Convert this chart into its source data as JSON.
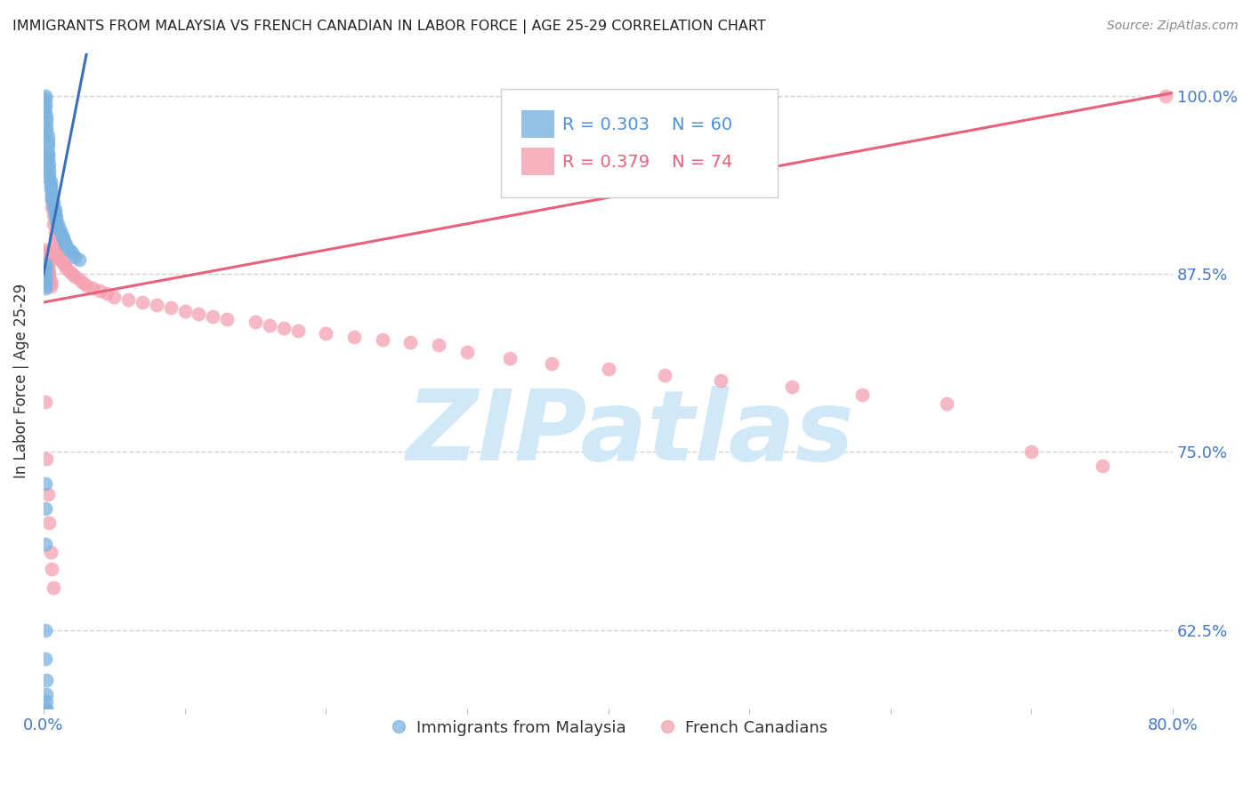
{
  "title": "IMMIGRANTS FROM MALAYSIA VS FRENCH CANADIAN IN LABOR FORCE | AGE 25-29 CORRELATION CHART",
  "source": "Source: ZipAtlas.com",
  "ylabel": "In Labor Force | Age 25-29",
  "xlim": [
    0.0,
    0.8
  ],
  "ylim": [
    0.57,
    1.03
  ],
  "xtick_pos": [
    0.0,
    0.1,
    0.2,
    0.3,
    0.4,
    0.5,
    0.6,
    0.7,
    0.8
  ],
  "xticklabels": [
    "0.0%",
    "",
    "",
    "",
    "",
    "",
    "",
    "",
    "80.0%"
  ],
  "ytick_positions": [
    0.625,
    0.75,
    0.875,
    1.0
  ],
  "ytick_labels": [
    "62.5%",
    "75.0%",
    "87.5%",
    "100.0%"
  ],
  "grid_color": "#cccccc",
  "background_color": "#ffffff",
  "series1_label": "Immigrants from Malaysia",
  "series2_label": "French Canadians",
  "series1_color": "#7ab3e0",
  "series2_color": "#f4a0b0",
  "series1_line_color": "#3a6fbe",
  "series2_line_color": "#e8607a",
  "legend_text1_color": "#4a90d9",
  "legend_text2_color": "#e8607a",
  "watermark": "ZIPatlas",
  "watermark_color": "#d0e8f8",
  "title_color": "#222222",
  "axis_label_color": "#333333",
  "tick_color": "#4477cc",
  "source_color": "#888888",
  "blue_x": [
    0.001,
    0.001,
    0.001,
    0.001,
    0.001,
    0.002,
    0.002,
    0.002,
    0.002,
    0.003,
    0.003,
    0.003,
    0.003,
    0.003,
    0.003,
    0.004,
    0.004,
    0.004,
    0.004,
    0.005,
    0.005,
    0.005,
    0.006,
    0.006,
    0.006,
    0.007,
    0.007,
    0.008,
    0.008,
    0.009,
    0.009,
    0.01,
    0.011,
    0.012,
    0.013,
    0.014,
    0.015,
    0.016,
    0.018,
    0.02,
    0.022,
    0.025,
    0.001,
    0.001,
    0.001,
    0.001,
    0.001,
    0.001,
    0.001,
    0.001,
    0.001,
    0.001,
    0.001,
    0.001,
    0.001,
    0.002,
    0.002,
    0.002,
    0.002,
    0.002
  ],
  "blue_y": [
    1.0,
    0.998,
    0.995,
    0.992,
    0.988,
    0.985,
    0.982,
    0.978,
    0.975,
    0.972,
    0.968,
    0.965,
    0.96,
    0.958,
    0.955,
    0.952,
    0.948,
    0.945,
    0.942,
    0.94,
    0.937,
    0.935,
    0.932,
    0.93,
    0.927,
    0.925,
    0.922,
    0.92,
    0.917,
    0.915,
    0.912,
    0.91,
    0.907,
    0.905,
    0.902,
    0.9,
    0.897,
    0.895,
    0.892,
    0.89,
    0.887,
    0.885,
    0.882,
    0.88,
    0.877,
    0.875,
    0.872,
    0.87,
    0.867,
    0.865,
    0.728,
    0.71,
    0.685,
    0.625,
    0.605,
    0.59,
    0.58,
    0.575,
    0.57,
    0.568
  ],
  "pink_x": [
    0.001,
    0.001,
    0.002,
    0.002,
    0.002,
    0.003,
    0.003,
    0.003,
    0.004,
    0.004,
    0.004,
    0.005,
    0.005,
    0.005,
    0.006,
    0.006,
    0.007,
    0.007,
    0.008,
    0.008,
    0.009,
    0.009,
    0.01,
    0.011,
    0.012,
    0.013,
    0.015,
    0.016,
    0.018,
    0.02,
    0.022,
    0.025,
    0.028,
    0.03,
    0.035,
    0.04,
    0.045,
    0.05,
    0.06,
    0.07,
    0.08,
    0.09,
    0.1,
    0.11,
    0.12,
    0.13,
    0.15,
    0.16,
    0.17,
    0.18,
    0.2,
    0.22,
    0.24,
    0.26,
    0.28,
    0.3,
    0.33,
    0.36,
    0.4,
    0.44,
    0.48,
    0.53,
    0.58,
    0.64,
    0.7,
    0.75,
    0.795,
    0.001,
    0.002,
    0.003,
    0.004,
    0.005,
    0.006,
    0.007
  ],
  "pink_y": [
    0.892,
    0.89,
    0.888,
    0.886,
    0.884,
    0.882,
    0.88,
    0.878,
    0.876,
    0.874,
    0.872,
    0.87,
    0.868,
    0.866,
    0.928,
    0.922,
    0.916,
    0.91,
    0.904,
    0.9,
    0.896,
    0.892,
    0.889,
    0.887,
    0.885,
    0.883,
    0.881,
    0.879,
    0.877,
    0.875,
    0.873,
    0.871,
    0.869,
    0.867,
    0.865,
    0.863,
    0.861,
    0.859,
    0.857,
    0.855,
    0.853,
    0.851,
    0.849,
    0.847,
    0.845,
    0.843,
    0.841,
    0.839,
    0.837,
    0.835,
    0.833,
    0.831,
    0.829,
    0.827,
    0.825,
    0.82,
    0.816,
    0.812,
    0.808,
    0.804,
    0.8,
    0.796,
    0.79,
    0.784,
    0.75,
    0.74,
    1.0,
    0.785,
    0.745,
    0.72,
    0.7,
    0.68,
    0.668,
    0.655
  ]
}
